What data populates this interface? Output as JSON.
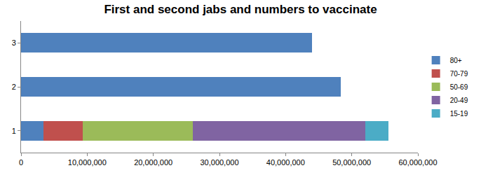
{
  "chart_data": {
    "type": "bar",
    "title": "First and second jabs and numbers to vaccinate",
    "orientation": "horizontal",
    "stacked": true,
    "categories": [
      "1",
      "2",
      "3"
    ],
    "series": [
      {
        "name": "80+",
        "color": "#4f81bd",
        "values": [
          3400000,
          48300000,
          44000000
        ]
      },
      {
        "name": "70-79",
        "color": "#c0504d",
        "values": [
          5900000,
          0,
          0
        ]
      },
      {
        "name": "50-69",
        "color": "#9bbb59",
        "values": [
          16700000,
          0,
          0
        ]
      },
      {
        "name": "20-49",
        "color": "#8064a2",
        "values": [
          26000000,
          0,
          0
        ]
      },
      {
        "name": "15-19",
        "color": "#4bacc6",
        "values": [
          3500000,
          0,
          0
        ]
      }
    ],
    "xlim": [
      0,
      60000000
    ],
    "xticks": [
      0,
      {
        "value": 10000000,
        "label": "10,000,000"
      },
      {
        "value": 20000000,
        "label": "20,000,000"
      },
      {
        "value": 30000000,
        "label": "30,000,000"
      },
      {
        "value": 40000000,
        "label": "40,000,000"
      },
      {
        "value": 50000000,
        "label": "50,000,000"
      },
      {
        "value": 60000000,
        "label": "60,000,000"
      }
    ],
    "grid": false,
    "legend": "right"
  }
}
